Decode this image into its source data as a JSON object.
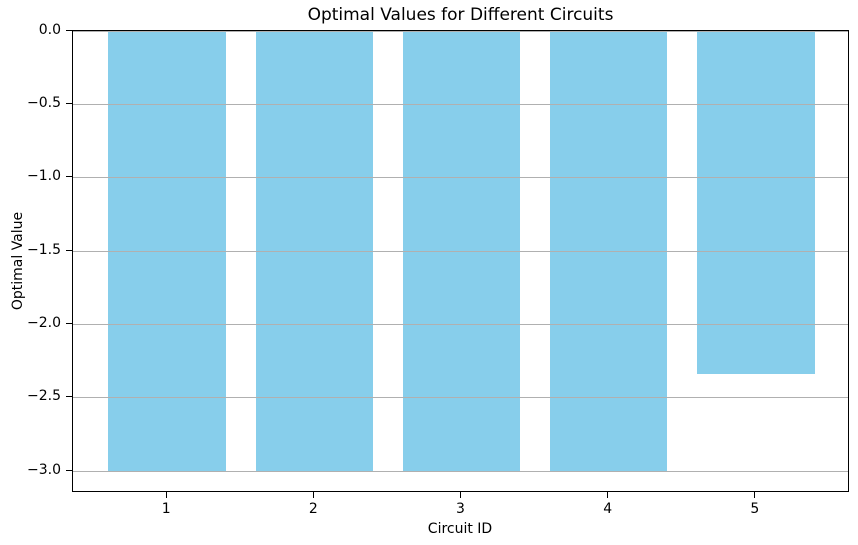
{
  "chart_data": {
    "type": "bar",
    "title": "Optimal Values for Different Circuits",
    "xlabel": "Circuit ID",
    "ylabel": "Optimal Value",
    "categories": [
      "1",
      "2",
      "3",
      "4",
      "5"
    ],
    "x": [
      1,
      2,
      3,
      4,
      5
    ],
    "values": [
      -3.0,
      -3.0,
      -3.0,
      -3.0,
      -2.34
    ],
    "bar_width": 0.8,
    "bar_color": "#87CEEB",
    "xlim": [
      0.36,
      5.64
    ],
    "ylim": [
      -3.15,
      0
    ],
    "yticks": [
      0.0,
      -0.5,
      -1.0,
      -1.5,
      -2.0,
      -2.5,
      -3.0
    ],
    "ytick_labels": [
      "0.0",
      "−0.5",
      "−1.0",
      "−1.5",
      "−2.0",
      "−2.5",
      "−3.0"
    ],
    "xticks": [
      1,
      2,
      3,
      4,
      5
    ],
    "xtick_labels": [
      "1",
      "2",
      "3",
      "4",
      "5"
    ],
    "grid": "horizontal",
    "grid_color": "#b0b0b0",
    "legend": "none",
    "background_color": "#ffffff",
    "spine_color": "#000000"
  }
}
